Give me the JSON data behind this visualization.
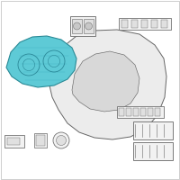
{
  "bg_color": "#ffffff",
  "border_color": "#bbbbbb",
  "blue_fill": "#5ecad6",
  "blue_edge": "#2a8a96",
  "outline": "#666666",
  "light_fill": "#f2f2f2",
  "mid_fill": "#e0e0e0",
  "dark_fill": "#cccccc"
}
